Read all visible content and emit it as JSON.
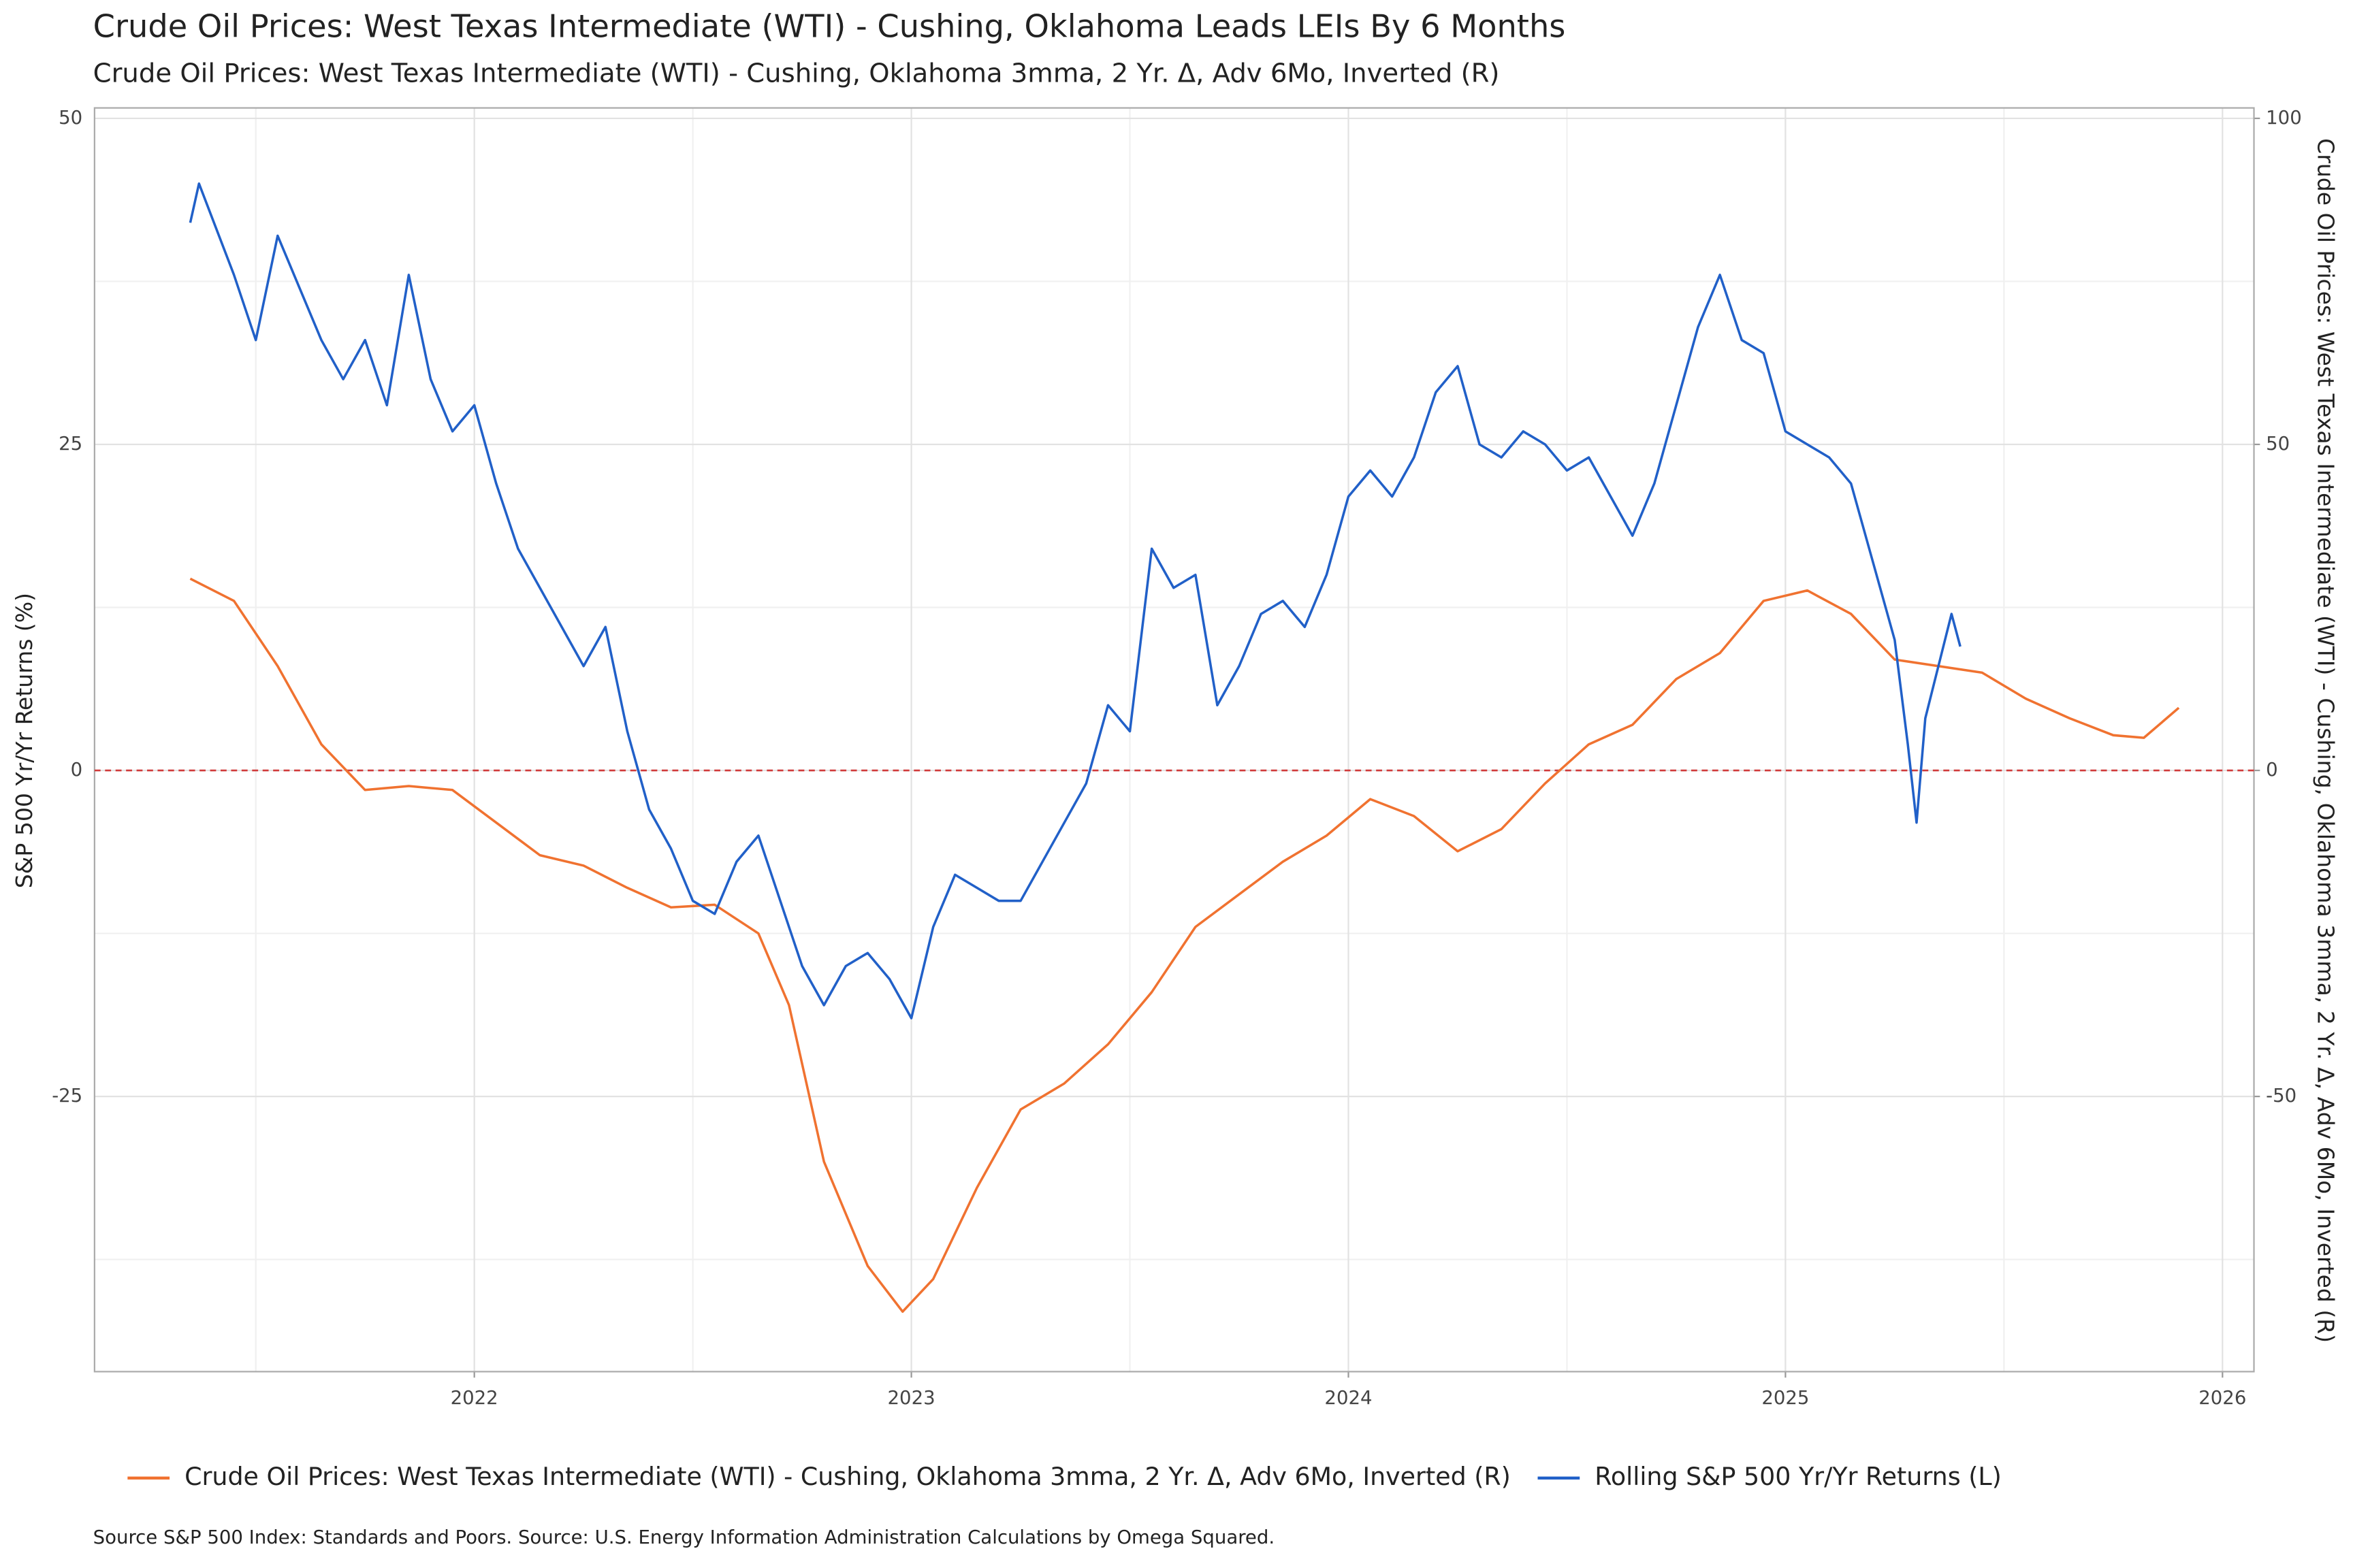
{
  "chart_data": {
    "type": "line",
    "title": "Crude Oil Prices: West Texas Intermediate (WTI) - Cushing, Oklahoma  Leads LEIs By  6  Months",
    "subtitle": "Crude Oil Prices: West Texas Intermediate (WTI) - Cushing, Oklahoma 3mma, 2 Yr. Δ, Adv 6Mo, Inverted (R)",
    "y_label": "S&P 500 Yr/Yr Returns (%)",
    "y2_label": "Crude Oil Prices: West Texas Intermediate (WTI) - Cushing, Oklahoma 3mma, 2 Yr. Δ, Adv 6Mo, Inverted (R)",
    "source": "Source S&P 500 Index: Standards and Poors. Source:  U.S. Energy Information Administration Calculations by Omega Squared.",
    "xlim": [
      2021.131,
      2026.072
    ],
    "xticks": [
      2022,
      2023,
      2024,
      2025,
      2026
    ],
    "ylim": [
      -46.1,
      50.8
    ],
    "yticks": [
      -25,
      0,
      25,
      50
    ],
    "y2lim": [
      -92.2,
      101.6
    ],
    "y2ticks": [
      -50,
      0,
      50,
      100
    ],
    "grid": true,
    "reference_line": {
      "value": 0,
      "color": "#d03a3a"
    },
    "series": [
      {
        "name": "Crude Oil Prices: West Texas Intermediate (WTI) - Cushing, Oklahoma 3mma, 2 Yr. Δ, Adv 6Mo, Inverted (R)",
        "color": "#f07230",
        "axis": "y2",
        "x": [
          2021.35,
          2021.45,
          2021.55,
          2021.65,
          2021.75,
          2021.85,
          2021.95,
          2022.05,
          2022.15,
          2022.25,
          2022.35,
          2022.45,
          2022.55,
          2022.65,
          2022.72,
          2022.8,
          2022.9,
          2022.98,
          2023.05,
          2023.15,
          2023.25,
          2023.35,
          2023.45,
          2023.55,
          2023.65,
          2023.75,
          2023.85,
          2023.95,
          2024.05,
          2024.15,
          2024.25,
          2024.35,
          2024.45,
          2024.55,
          2024.65,
          2024.75,
          2024.85,
          2024.95,
          2025.05,
          2025.15,
          2025.25,
          2025.35,
          2025.45,
          2025.55,
          2025.65,
          2025.75,
          2025.82,
          2025.9
        ],
        "values": [
          29.4,
          26,
          16,
          4,
          -3,
          -2.4,
          -3,
          -8,
          -13,
          -14.6,
          -18,
          -21,
          -20.6,
          -25,
          -36,
          -60,
          -76,
          -83,
          -78,
          -64,
          -52,
          -48,
          -42,
          -34,
          -24,
          -19,
          -14,
          -10,
          -4.4,
          -7,
          -12.4,
          -9,
          -2,
          4,
          7,
          14,
          18,
          26,
          27.6,
          24,
          17,
          16,
          15,
          11,
          8,
          5.4,
          5,
          9.6
        ]
      },
      {
        "name": "Rolling S&P 500 Yr/Yr Returns (L)",
        "color": "#2160c8",
        "axis": "y",
        "x": [
          2021.35,
          2021.37,
          2021.45,
          2021.5,
          2021.55,
          2021.6,
          2021.65,
          2021.7,
          2021.75,
          2021.8,
          2021.85,
          2021.9,
          2021.95,
          2022.0,
          2022.05,
          2022.1,
          2022.15,
          2022.2,
          2022.25,
          2022.3,
          2022.35,
          2022.4,
          2022.45,
          2022.5,
          2022.55,
          2022.6,
          2022.65,
          2022.7,
          2022.75,
          2022.8,
          2022.85,
          2022.9,
          2022.95,
          2023.0,
          2023.05,
          2023.1,
          2023.15,
          2023.2,
          2023.25,
          2023.3,
          2023.35,
          2023.4,
          2023.45,
          2023.5,
          2023.55,
          2023.6,
          2023.65,
          2023.7,
          2023.75,
          2023.8,
          2023.85,
          2023.9,
          2023.95,
          2024.0,
          2024.05,
          2024.1,
          2024.15,
          2024.2,
          2024.25,
          2024.3,
          2024.35,
          2024.4,
          2024.45,
          2024.5,
          2024.55,
          2024.6,
          2024.65,
          2024.7,
          2024.75,
          2024.8,
          2024.85,
          2024.9,
          2024.95,
          2025.0,
          2025.05,
          2025.1,
          2025.15,
          2025.2,
          2025.25,
          2025.28,
          2025.3,
          2025.32,
          2025.35,
          2025.38,
          2025.4
        ],
        "values": [
          42,
          45,
          38,
          33,
          41,
          37,
          33,
          30,
          33,
          28,
          38,
          30,
          26,
          28,
          22,
          17,
          14,
          11,
          8,
          11,
          3,
          -3,
          -6,
          -10,
          -11,
          -7,
          -5,
          -10,
          -15,
          -18,
          -15,
          -14,
          -16,
          -19,
          -12,
          -8,
          -9,
          -10,
          -10,
          -7,
          -4,
          -1,
          5,
          3,
          17,
          14,
          15,
          5,
          8,
          12,
          13,
          11,
          15,
          21,
          23,
          21,
          24,
          29,
          31,
          25,
          24,
          26,
          25,
          23,
          24,
          21,
          18,
          22,
          28,
          34,
          38,
          33,
          32,
          26,
          25,
          24,
          22,
          16,
          10,
          2,
          -4,
          4,
          8,
          12,
          9.5
        ]
      }
    ]
  }
}
